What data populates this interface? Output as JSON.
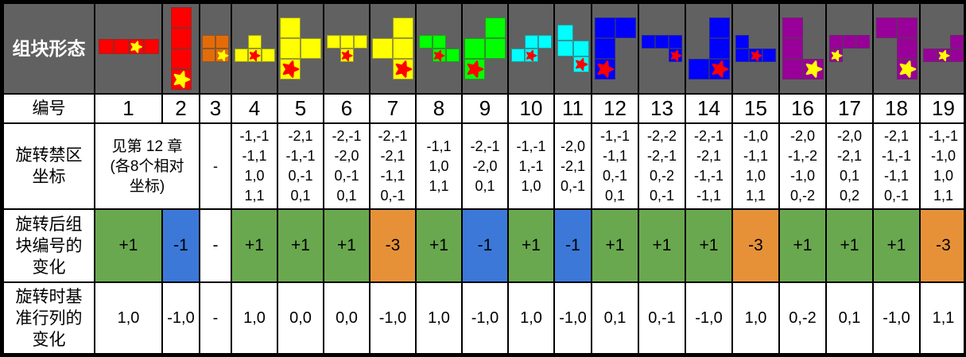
{
  "header": {
    "shape_row_label": "组块形态"
  },
  "colors": {
    "header_bg": "#616161",
    "delta_green": "#6aa84f",
    "delta_blue": "#3c78d8",
    "delta_orange": "#e69138",
    "shape_red": "#ff0000",
    "shape_orange": "#e36c09",
    "shape_yellow": "#ffff00",
    "shape_green": "#00ff00",
    "shape_cyan": "#00ffff",
    "shape_blue": "#0000ff",
    "shape_purple": "#990099",
    "marker_yellow": "#ffff00",
    "marker_red": "#ff0000"
  },
  "row_labels": {
    "number": "编号",
    "forbidden_lines": [
      "旋转禁区",
      "坐标"
    ],
    "delta_lines": [
      "旋转后组",
      "块编号的",
      "变化"
    ],
    "shift_lines": [
      "旋转时基",
      "准行列的",
      "变化"
    ]
  },
  "forbidden_note": {
    "merged_lines": [
      "见第 12 章",
      "(各8个相对",
      "坐标)"
    ],
    "col3_value": "-"
  },
  "columns": [
    {
      "num": "1",
      "coords": null,
      "delta": "+1",
      "delta_style": "green",
      "shift": "1,0"
    },
    {
      "num": "2",
      "coords": null,
      "delta": "-1",
      "delta_style": "blue",
      "shift": "-1,0"
    },
    {
      "num": "3",
      "coords": null,
      "delta": "-",
      "delta_style": "none",
      "shift": "-"
    },
    {
      "num": "4",
      "coords": [
        "-1,-1",
        "-1,1",
        "1,0",
        "1,1"
      ],
      "delta": "+1",
      "delta_style": "green",
      "shift": "1,0"
    },
    {
      "num": "5",
      "coords": [
        "-2,1",
        "-1,-1",
        "0,-1",
        "0,1"
      ],
      "delta": "+1",
      "delta_style": "green",
      "shift": "0,0"
    },
    {
      "num": "6",
      "coords": [
        "-2,-1",
        "-2,0",
        "0,-1",
        "0,1"
      ],
      "delta": "+1",
      "delta_style": "green",
      "shift": "0,0"
    },
    {
      "num": "7",
      "coords": [
        "-2,-1",
        "-2,1",
        "-1,1",
        "0,-1"
      ],
      "delta": "-3",
      "delta_style": "orange",
      "shift": "-1,0"
    },
    {
      "num": "8",
      "coords": [
        "-1,1",
        "1,0",
        "1,1"
      ],
      "delta": "+1",
      "delta_style": "green",
      "shift": "1,0"
    },
    {
      "num": "9",
      "coords": [
        "-2,-1",
        "-2,0",
        "0,1"
      ],
      "delta": "-1",
      "delta_style": "blue",
      "shift": "-1,0"
    },
    {
      "num": "10",
      "coords": [
        "-1,-1",
        "1,-1",
        "1,0"
      ],
      "delta": "+1",
      "delta_style": "green",
      "shift": "1,0"
    },
    {
      "num": "11",
      "coords": [
        "-2,0",
        "-2,1",
        "0,-1"
      ],
      "delta": "-1",
      "delta_style": "blue",
      "shift": "-1,0"
    },
    {
      "num": "12",
      "coords": [
        "-1,-1",
        "-1,1",
        "0,-1",
        "0,1"
      ],
      "delta": "+1",
      "delta_style": "green",
      "shift": "0,1"
    },
    {
      "num": "13",
      "coords": [
        "-2,-2",
        "-2,-1",
        "0,-2",
        "0,-1"
      ],
      "delta": "+1",
      "delta_style": "green",
      "shift": "0,-1"
    },
    {
      "num": "14",
      "coords": [
        "-2,-1",
        "-2,1",
        "-1,-1",
        "-1,1"
      ],
      "delta": "+1",
      "delta_style": "green",
      "shift": "-1,0"
    },
    {
      "num": "15",
      "coords": [
        "-1,0",
        "-1,1",
        "1,0",
        "1,1"
      ],
      "delta": "-3",
      "delta_style": "orange",
      "shift": "1,0"
    },
    {
      "num": "16",
      "coords": [
        "-2,0",
        "-1,-2",
        "-1,0",
        "0,-2"
      ],
      "delta": "+1",
      "delta_style": "green",
      "shift": "0,-2"
    },
    {
      "num": "17",
      "coords": [
        "-2,0",
        "-2,1",
        "0,1",
        "0,2"
      ],
      "delta": "+1",
      "delta_style": "green",
      "shift": "0,1"
    },
    {
      "num": "18",
      "coords": [
        "-2,1",
        "-1,-1",
        "-1,1",
        "0,-1"
      ],
      "delta": "+1",
      "delta_style": "green",
      "shift": "-1,0"
    },
    {
      "num": "19",
      "coords": [
        "-1,-1",
        "-1,0",
        "1,0",
        "1,1"
      ],
      "delta": "-3",
      "delta_style": "orange",
      "shift": "1,1"
    }
  ],
  "shapes": [
    {
      "id": 1,
      "color": "shape_red",
      "marker_color": "marker_yellow",
      "cells": [
        [
          0,
          0
        ],
        [
          1,
          0
        ],
        [
          2,
          0
        ],
        [
          3,
          0
        ]
      ],
      "marker": [
        2,
        0
      ]
    },
    {
      "id": 2,
      "color": "shape_red",
      "marker_color": "marker_yellow",
      "cells": [
        [
          0,
          0
        ],
        [
          0,
          1
        ],
        [
          0,
          2
        ],
        [
          0,
          3
        ]
      ],
      "marker": [
        0,
        3
      ]
    },
    {
      "id": 3,
      "color": "shape_orange",
      "marker_color": "marker_yellow",
      "cells": [
        [
          0,
          0
        ],
        [
          1,
          0
        ],
        [
          0,
          1
        ],
        [
          1,
          1
        ]
      ],
      "marker": [
        1,
        1
      ]
    },
    {
      "id": 4,
      "color": "shape_yellow",
      "marker_color": "marker_red",
      "cells": [
        [
          1,
          0
        ],
        [
          0,
          1
        ],
        [
          1,
          1
        ],
        [
          2,
          1
        ]
      ],
      "marker": [
        1,
        1
      ]
    },
    {
      "id": 5,
      "color": "shape_yellow",
      "marker_color": "marker_red",
      "cells": [
        [
          0,
          0
        ],
        [
          0,
          1
        ],
        [
          1,
          1
        ],
        [
          0,
          2
        ]
      ],
      "marker": [
        0,
        2
      ]
    },
    {
      "id": 6,
      "color": "shape_yellow",
      "marker_color": "marker_red",
      "cells": [
        [
          0,
          0
        ],
        [
          1,
          0
        ],
        [
          2,
          0
        ],
        [
          1,
          1
        ]
      ],
      "marker": [
        1,
        1
      ]
    },
    {
      "id": 7,
      "color": "shape_yellow",
      "marker_color": "marker_red",
      "cells": [
        [
          1,
          0
        ],
        [
          0,
          1
        ],
        [
          1,
          1
        ],
        [
          1,
          2
        ]
      ],
      "marker": [
        1,
        2
      ]
    },
    {
      "id": 8,
      "color": "shape_green",
      "marker_color": "marker_red",
      "cells": [
        [
          0,
          0
        ],
        [
          1,
          0
        ],
        [
          1,
          1
        ],
        [
          2,
          1
        ]
      ],
      "marker": [
        1,
        1
      ]
    },
    {
      "id": 9,
      "color": "shape_green",
      "marker_color": "marker_red",
      "cells": [
        [
          1,
          0
        ],
        [
          0,
          1
        ],
        [
          1,
          1
        ],
        [
          0,
          2
        ]
      ],
      "marker": [
        0,
        2
      ]
    },
    {
      "id": 10,
      "color": "shape_cyan",
      "marker_color": "marker_red",
      "cells": [
        [
          1,
          0
        ],
        [
          2,
          0
        ],
        [
          0,
          1
        ],
        [
          1,
          1
        ]
      ],
      "marker": [
        1,
        1
      ]
    },
    {
      "id": 11,
      "color": "shape_cyan",
      "marker_color": "marker_red",
      "cells": [
        [
          0,
          0
        ],
        [
          0,
          1
        ],
        [
          1,
          1
        ],
        [
          1,
          2
        ]
      ],
      "marker": [
        1,
        2
      ]
    },
    {
      "id": 12,
      "color": "shape_blue",
      "marker_color": "marker_red",
      "cells": [
        [
          0,
          0
        ],
        [
          1,
          0
        ],
        [
          0,
          1
        ],
        [
          0,
          2
        ]
      ],
      "marker": [
        0,
        2
      ]
    },
    {
      "id": 13,
      "color": "shape_blue",
      "marker_color": "marker_red",
      "cells": [
        [
          0,
          0
        ],
        [
          1,
          0
        ],
        [
          2,
          0
        ],
        [
          2,
          1
        ]
      ],
      "marker": [
        2,
        1
      ]
    },
    {
      "id": 14,
      "color": "shape_blue",
      "marker_color": "marker_red",
      "cells": [
        [
          1,
          0
        ],
        [
          1,
          1
        ],
        [
          0,
          2
        ],
        [
          1,
          2
        ]
      ],
      "marker": [
        1,
        2
      ]
    },
    {
      "id": 15,
      "color": "shape_blue",
      "marker_color": "marker_red",
      "cells": [
        [
          0,
          0
        ],
        [
          0,
          1
        ],
        [
          1,
          1
        ],
        [
          2,
          1
        ]
      ],
      "marker": [
        1,
        1
      ]
    },
    {
      "id": 16,
      "color": "shape_purple",
      "marker_color": "marker_yellow",
      "cells": [
        [
          0,
          0
        ],
        [
          0,
          1
        ],
        [
          0,
          2
        ],
        [
          1,
          2
        ]
      ],
      "marker": [
        1,
        2
      ]
    },
    {
      "id": 17,
      "color": "shape_purple",
      "marker_color": "marker_yellow",
      "cells": [
        [
          0,
          0
        ],
        [
          1,
          0
        ],
        [
          2,
          0
        ],
        [
          0,
          1
        ]
      ],
      "marker": [
        0,
        1
      ]
    },
    {
      "id": 18,
      "color": "shape_purple",
      "marker_color": "marker_yellow",
      "cells": [
        [
          0,
          0
        ],
        [
          1,
          0
        ],
        [
          1,
          1
        ],
        [
          1,
          2
        ]
      ],
      "marker": [
        1,
        2
      ]
    },
    {
      "id": 19,
      "color": "shape_purple",
      "marker_color": "marker_yellow",
      "cells": [
        [
          2,
          0
        ],
        [
          0,
          1
        ],
        [
          1,
          1
        ],
        [
          2,
          1
        ]
      ],
      "marker": [
        1,
        1
      ]
    }
  ]
}
